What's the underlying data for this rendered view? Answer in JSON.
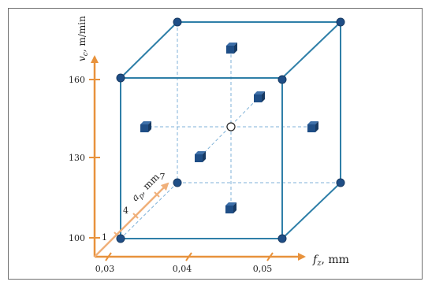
{
  "y_axis": {
    "label_symbol": "v",
    "label_subscript": "c",
    "label_unit": ", m/min",
    "ticks": [
      "160",
      "130",
      "100"
    ]
  },
  "x_axis": {
    "label_symbol": "f",
    "label_subscript": "z",
    "label_unit": ", mm",
    "ticks": [
      "0,03",
      "0,04",
      "0,05"
    ]
  },
  "depth_axis": {
    "label_symbol": "a",
    "label_subscript": "p",
    "label_unit": ", mm",
    "ticks": [
      "1",
      "4",
      "7"
    ]
  },
  "design": {
    "corner_points": 8,
    "face_center_points": 6,
    "center_points": 1
  },
  "colors": {
    "axis": "#e8923c",
    "cube_edge": "#2f7fa8",
    "guide": "#7fb2d8",
    "point": "#1f4e86"
  }
}
